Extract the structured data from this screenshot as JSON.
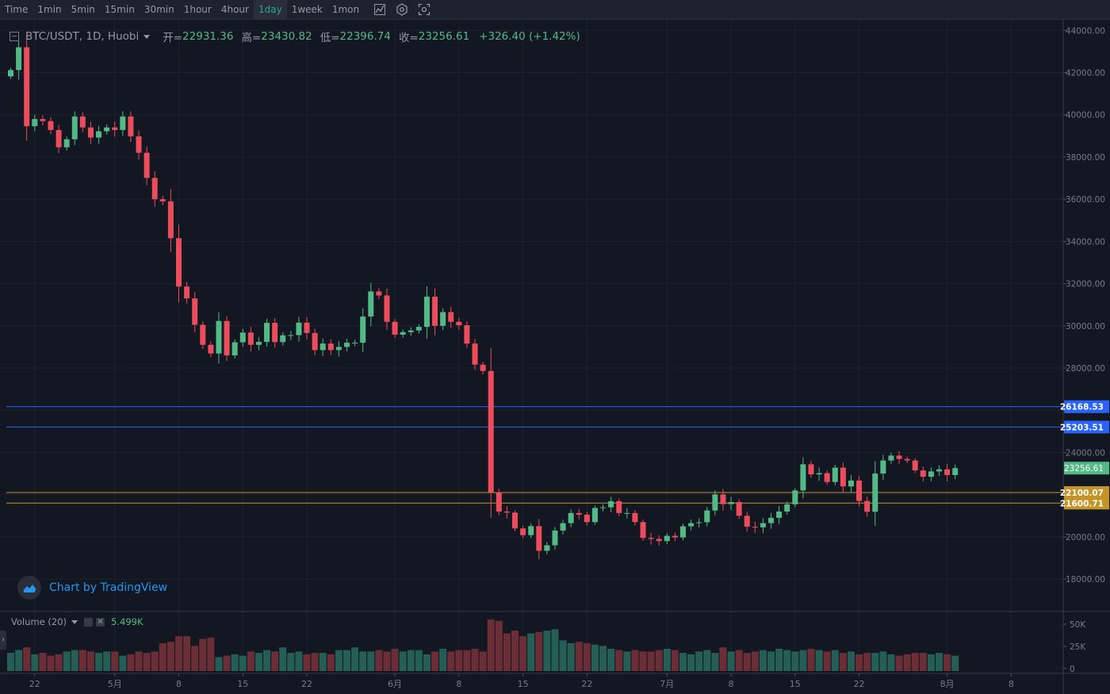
{
  "toolbar": {
    "intervals": [
      "Time",
      "1min",
      "5min",
      "15min",
      "30min",
      "1hour",
      "4hour",
      "1day",
      "1week",
      "1mon"
    ],
    "active": "1day",
    "icons": [
      "indicators-icon",
      "settings-icon",
      "screenshot-icon"
    ]
  },
  "legend": {
    "symbol": "BTC/USDT, 1D, Huobi",
    "open_label": "开=",
    "open": "22931.36",
    "high_label": "高=",
    "high": "23430.82",
    "low_label": "低=",
    "low": "22396.74",
    "close_label": "收=",
    "close": "23256.61",
    "change": "+326.40 (+1.42%)"
  },
  "volume_legend": {
    "label": "Volume (20)",
    "value": "5.499K"
  },
  "branding": {
    "text": "Chart by TradingView"
  },
  "colors": {
    "background": "#131722",
    "up": "#53b987",
    "down": "#eb4d5c",
    "blue_line": "#2962ff",
    "orange_line": "#f5b840",
    "grid": "#1e2230"
  },
  "chart_data": [
    {
      "type": "candlestick",
      "ylim": [
        16500,
        44500
      ],
      "y_ticks": [
        18000,
        20000,
        22000,
        24000,
        26000,
        28000,
        30000,
        32000,
        34000,
        36000,
        38000,
        40000,
        42000,
        44000
      ],
      "x_tick_labels": [
        "22",
        "5月",
        "8",
        "15",
        "22",
        "6月",
        "8",
        "15",
        "22",
        "7月",
        "8",
        "15",
        "22",
        "8月",
        "8"
      ],
      "horizontal_lines": [
        {
          "value": 26168.53,
          "label": "26168.53",
          "color": "#2962ff"
        },
        {
          "value": 25203.51,
          "label": "25203.51",
          "color": "#2962ff"
        },
        {
          "value": 22100.07,
          "label": "22100.07",
          "color": "#c49526"
        },
        {
          "value": 21600.71,
          "label": "21600.71",
          "color": "#c49526"
        }
      ],
      "last_price": {
        "value": 23256.61,
        "label": "23256.61"
      },
      "close_series": [
        42120,
        43200,
        39460,
        39800,
        39700,
        39280,
        38460,
        38840,
        39920,
        39400,
        38920,
        39220,
        39400,
        39280,
        39920,
        38980,
        38200,
        37010,
        36000,
        35900,
        34150,
        31860,
        31300,
        30050,
        29100,
        28690,
        30230,
        28600,
        29220,
        29680,
        29100,
        29240,
        30140,
        29230,
        29550,
        29560,
        30150,
        29660,
        28850,
        29160,
        28850,
        29000,
        29200,
        29200,
        30440,
        31630,
        31440,
        30190,
        29580,
        29700,
        29780,
        29950,
        31380,
        30000,
        30650,
        30190,
        30030,
        29160,
        28160,
        27860,
        22120,
        21200,
        21150,
        20400,
        20080,
        20510,
        19340,
        19600,
        20300,
        20650,
        21130,
        21050,
        20700,
        21370,
        21400,
        21690,
        21130,
        21130,
        20700,
        19950,
        19900,
        19800,
        20050,
        19970,
        20500,
        20650,
        20690,
        21250,
        22010,
        21550,
        21650,
        21000,
        20480,
        20450,
        20650,
        20900,
        21200,
        21540,
        22200,
        23440,
        22960,
        23020,
        22600,
        23280,
        22390,
        22670,
        21700,
        21190,
        23000,
        23620,
        23850,
        23690,
        23620,
        23150,
        22850,
        23100,
        23200,
        22930,
        23257
      ],
      "volume_series": [
        13,
        15,
        17,
        12,
        13,
        11,
        12,
        14,
        15,
        15,
        14,
        13,
        14,
        14,
        11,
        12,
        14,
        13,
        14,
        20,
        21,
        25,
        25,
        18,
        23,
        24,
        10,
        11,
        12,
        11,
        14,
        13,
        15,
        14,
        17,
        13,
        14,
        12,
        13,
        13,
        12,
        15,
        15,
        17,
        14,
        14,
        15,
        14,
        16,
        14,
        15,
        15,
        12,
        14,
        16,
        14,
        15,
        15,
        16,
        14,
        37,
        36,
        27,
        29,
        25,
        27,
        28,
        29,
        30,
        22,
        20,
        21,
        20,
        19,
        18,
        16,
        15,
        14,
        15,
        14,
        14,
        15,
        16,
        15,
        13,
        12,
        14,
        15,
        13,
        17,
        14,
        15,
        13,
        14,
        15,
        14,
        16,
        15,
        14,
        15,
        16,
        15,
        14,
        15,
        13,
        14,
        12,
        13,
        13,
        14,
        12,
        11,
        12,
        13,
        13,
        12,
        13,
        12,
        11
      ],
      "volume_ylim": [
        0,
        55000
      ],
      "volume_ticks": [
        "50K",
        "25K",
        "0"
      ]
    }
  ]
}
